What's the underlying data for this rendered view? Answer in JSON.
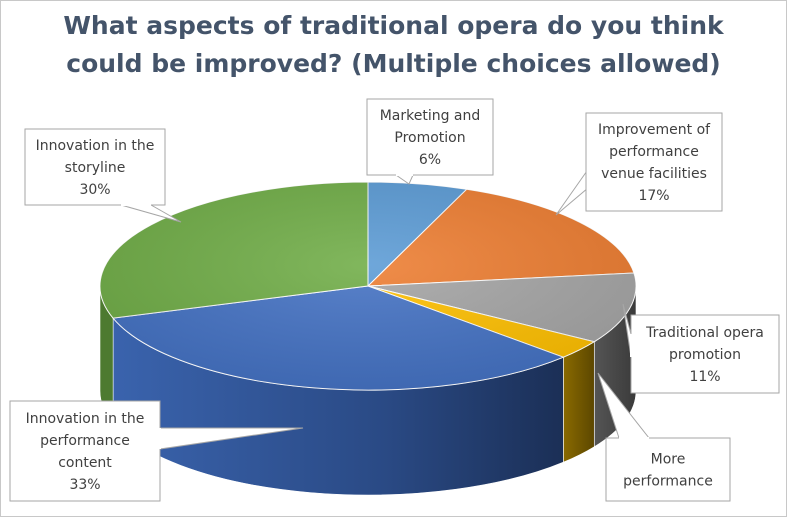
{
  "chart_data": {
    "type": "pie",
    "title_line1": "What aspects of traditional opera do you think",
    "title_line2": "could be improved? (Multiple choices allowed)",
    "slices": [
      {
        "label": "Marketing and Promotion",
        "label_lines": [
          "Marketing and",
          "Promotion"
        ],
        "value": 6,
        "value_label": "6%",
        "color": "#5b9bd5"
      },
      {
        "label": "Improvement of performance venue facilities",
        "label_lines": [
          "Improvement of",
          "performance",
          "venue facilities"
        ],
        "value": 17,
        "value_label": "17%",
        "color": "#ed7d31"
      },
      {
        "label": "Traditional opera promotion",
        "label_lines": [
          "Traditional opera",
          "promotion"
        ],
        "value": 11,
        "value_label": "11%",
        "color": "#a5a5a5"
      },
      {
        "label": "More performance",
        "label_lines": [
          "More",
          "performance"
        ],
        "value": 3,
        "value_label": "",
        "color": "#ffc000"
      },
      {
        "label": "Innovation in the performance content",
        "label_lines": [
          "Innovation in the",
          "performance",
          "content"
        ],
        "value": 33,
        "value_label": "33%",
        "color": "#4472c4"
      },
      {
        "label": "Innovation in the storyline",
        "label_lines": [
          "Innovation in the",
          "storyline"
        ],
        "value": 30,
        "value_label": "30%",
        "color": "#70ad47"
      }
    ],
    "legend": "none",
    "style": "3d-pie-with-callouts"
  }
}
